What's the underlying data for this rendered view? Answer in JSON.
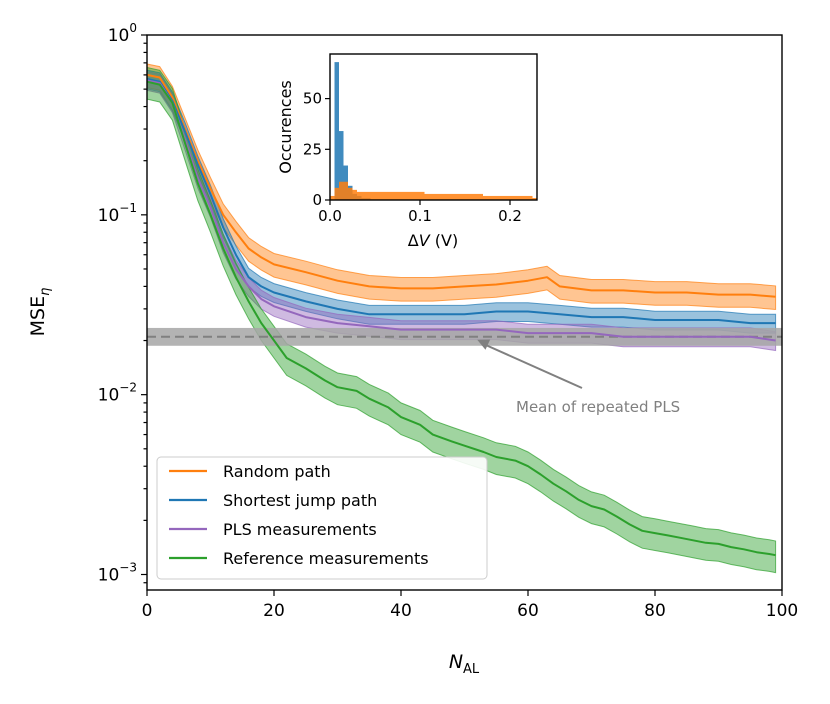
{
  "chart_data": [
    {
      "id": "main",
      "type": "line",
      "yscale": "log",
      "xlabel": {
        "base": "N",
        "sub": "AL"
      },
      "ylabel": {
        "base": "MSE",
        "sub": "η"
      },
      "xlim": [
        0,
        100
      ],
      "ylim": [
        0.00082,
        1.0
      ],
      "xticks": [
        0,
        20,
        40,
        60,
        80,
        100
      ],
      "yticks": [
        {
          "value": 1.0,
          "base": "10",
          "exp": "0"
        },
        {
          "value": 0.1,
          "base": "10",
          "exp": "−1"
        },
        {
          "value": 0.01,
          "base": "10",
          "exp": "−2"
        },
        {
          "value": 0.001,
          "base": "10",
          "exp": "−3"
        }
      ],
      "series": [
        {
          "name": "Random path",
          "color": "#ff7f0e",
          "points": [
            [
              0,
              0.6
            ],
            [
              2,
              0.58
            ],
            [
              4,
              0.45
            ],
            [
              6,
              0.3
            ],
            [
              8,
              0.2
            ],
            [
              10,
              0.14
            ],
            [
              12,
              0.1
            ],
            [
              14,
              0.08
            ],
            [
              16,
              0.065
            ],
            [
              18,
              0.058
            ],
            [
              20,
              0.053
            ],
            [
              25,
              0.048
            ],
            [
              30,
              0.043
            ],
            [
              35,
              0.04
            ],
            [
              40,
              0.039
            ],
            [
              45,
              0.039
            ],
            [
              50,
              0.04
            ],
            [
              55,
              0.041
            ],
            [
              60,
              0.043
            ],
            [
              63,
              0.045
            ],
            [
              65,
              0.04
            ],
            [
              70,
              0.038
            ],
            [
              75,
              0.038
            ],
            [
              80,
              0.037
            ],
            [
              85,
              0.037
            ],
            [
              90,
              0.036
            ],
            [
              95,
              0.036
            ],
            [
              99,
              0.035
            ]
          ],
          "band": [
            0.15,
            0.15
          ]
        },
        {
          "name": "Shortest jump path",
          "color": "#1f77b4",
          "points": [
            [
              0,
              0.57
            ],
            [
              2,
              0.55
            ],
            [
              4,
              0.43
            ],
            [
              6,
              0.29
            ],
            [
              8,
              0.19
            ],
            [
              10,
              0.13
            ],
            [
              12,
              0.085
            ],
            [
              14,
              0.06
            ],
            [
              16,
              0.045
            ],
            [
              18,
              0.04
            ],
            [
              20,
              0.037
            ],
            [
              25,
              0.033
            ],
            [
              30,
              0.03
            ],
            [
              35,
              0.028
            ],
            [
              40,
              0.028
            ],
            [
              45,
              0.028
            ],
            [
              50,
              0.028
            ],
            [
              55,
              0.029
            ],
            [
              60,
              0.029
            ],
            [
              65,
              0.028
            ],
            [
              70,
              0.027
            ],
            [
              75,
              0.027
            ],
            [
              80,
              0.026
            ],
            [
              85,
              0.026
            ],
            [
              90,
              0.026
            ],
            [
              95,
              0.025
            ],
            [
              99,
              0.025
            ]
          ],
          "band": [
            0.12,
            0.12
          ]
        },
        {
          "name": "PLS measurements",
          "color": "#9467bd",
          "points": [
            [
              0,
              0.56
            ],
            [
              2,
              0.54
            ],
            [
              4,
              0.42
            ],
            [
              6,
              0.26
            ],
            [
              8,
              0.16
            ],
            [
              10,
              0.11
            ],
            [
              12,
              0.07
            ],
            [
              14,
              0.05
            ],
            [
              16,
              0.04
            ],
            [
              18,
              0.034
            ],
            [
              20,
              0.031
            ],
            [
              25,
              0.027
            ],
            [
              30,
              0.025
            ],
            [
              35,
              0.024
            ],
            [
              40,
              0.023
            ],
            [
              45,
              0.023
            ],
            [
              50,
              0.023
            ],
            [
              55,
              0.023
            ],
            [
              60,
              0.022
            ],
            [
              65,
              0.022
            ],
            [
              70,
              0.022
            ],
            [
              75,
              0.021
            ],
            [
              80,
              0.021
            ],
            [
              85,
              0.021
            ],
            [
              90,
              0.021
            ],
            [
              95,
              0.021
            ],
            [
              99,
              0.02
            ]
          ],
          "band": [
            0.12,
            0.12
          ]
        },
        {
          "name": "Reference measurements",
          "color": "#2ca02c",
          "points": [
            [
              0,
              0.55
            ],
            [
              2,
              0.53
            ],
            [
              4,
              0.42
            ],
            [
              6,
              0.25
            ],
            [
              8,
              0.15
            ],
            [
              10,
              0.1
            ],
            [
              12,
              0.065
            ],
            [
              14,
              0.045
            ],
            [
              16,
              0.033
            ],
            [
              18,
              0.025
            ],
            [
              20,
              0.02
            ],
            [
              22,
              0.016
            ],
            [
              25,
              0.014
            ],
            [
              28,
              0.012
            ],
            [
              30,
              0.011
            ],
            [
              33,
              0.0105
            ],
            [
              35,
              0.0095
            ],
            [
              38,
              0.0085
            ],
            [
              40,
              0.0075
            ],
            [
              43,
              0.0068
            ],
            [
              45,
              0.006
            ],
            [
              48,
              0.0055
            ],
            [
              50,
              0.0052
            ],
            [
              53,
              0.0048
            ],
            [
              55,
              0.0045
            ],
            [
              58,
              0.0043
            ],
            [
              60,
              0.004
            ],
            [
              62,
              0.0036
            ],
            [
              64,
              0.0032
            ],
            [
              66,
              0.0029
            ],
            [
              68,
              0.0026
            ],
            [
              70,
              0.0024
            ],
            [
              72,
              0.0023
            ],
            [
              74,
              0.0021
            ],
            [
              76,
              0.0019
            ],
            [
              78,
              0.00175
            ],
            [
              80,
              0.0017
            ],
            [
              82,
              0.00165
            ],
            [
              84,
              0.0016
            ],
            [
              86,
              0.00155
            ],
            [
              88,
              0.0015
            ],
            [
              90,
              0.00148
            ],
            [
              92,
              0.00142
            ],
            [
              94,
              0.00138
            ],
            [
              96,
              0.00133
            ],
            [
              98,
              0.0013
            ],
            [
              99,
              0.00128
            ]
          ],
          "band": [
            0.2,
            0.2
          ]
        }
      ],
      "reference_line": {
        "name": "Mean of repeated PLS",
        "value": 0.021,
        "band": [
          0.0187,
          0.0235
        ],
        "line_color": "#808080",
        "band_color": "#a6a6a6"
      },
      "annotation": {
        "text": "Mean of repeated PLS",
        "color": "#808080",
        "target_x": 52,
        "target_y": 0.0202
      },
      "legend": "lower-left"
    },
    {
      "id": "inset",
      "type": "histogram",
      "xlabel": {
        "delta": "Δ",
        "var": "V",
        "unit": " (V)"
      },
      "ylabel": "Occurences",
      "xlim": [
        0,
        0.23
      ],
      "ylim": [
        0,
        72
      ],
      "xticks": [
        {
          "value": 0.0,
          "label": "0.0"
        },
        {
          "value": 0.1,
          "label": "0.1"
        },
        {
          "value": 0.2,
          "label": "0.2"
        }
      ],
      "yticks": [
        0,
        25,
        50
      ],
      "bin_width": 0.005,
      "series": [
        {
          "name": "Shortest jump path",
          "color": "#1f77b4",
          "opacity": 0.85,
          "counts": [
            0,
            68,
            34,
            17,
            7,
            3,
            2,
            1,
            1
          ]
        },
        {
          "name": "Random path",
          "color": "#ff7f0e",
          "opacity": 0.85,
          "counts": [
            2,
            6,
            9,
            9,
            6,
            5,
            4,
            4,
            4,
            4,
            4,
            4,
            4,
            4,
            4,
            4,
            4,
            4,
            4,
            4,
            4,
            3,
            3,
            3,
            3,
            3,
            3,
            3,
            3,
            3,
            3,
            3,
            3,
            3,
            2,
            2,
            2,
            2,
            2,
            2,
            2,
            2,
            2,
            2,
            2,
            1
          ]
        }
      ]
    }
  ]
}
